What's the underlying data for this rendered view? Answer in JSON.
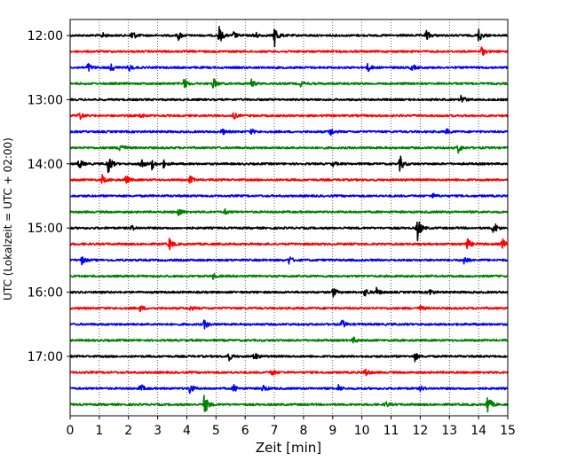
{
  "chart_data": {
    "type": "line",
    "title": "",
    "xlabel": "Zeit  [min]",
    "ylabel": "UTC (Lokalzeit = UTC + 02:00)",
    "xlim": [
      0,
      15
    ],
    "x_ticks": [
      0,
      1,
      2,
      3,
      4,
      5,
      6,
      7,
      8,
      9,
      10,
      11,
      12,
      13,
      14,
      15
    ],
    "y_ticks": [
      "12:00",
      "13:00",
      "14:00",
      "15:00",
      "16:00",
      "17:00"
    ],
    "grid": "vertical dotted",
    "colors": [
      "#000000",
      "#ff0000",
      "#0000ff",
      "#008000"
    ],
    "trace_interval_min": 15,
    "series": [
      {
        "start": "12:00",
        "color": "#000000",
        "events": [
          [
            1.1,
            3
          ],
          [
            2.1,
            8
          ],
          [
            3.7,
            6
          ],
          [
            5.1,
            11
          ],
          [
            5.6,
            4
          ],
          [
            6.3,
            6
          ],
          [
            7.0,
            14
          ],
          [
            12.2,
            7
          ],
          [
            14.0,
            9
          ]
        ]
      },
      {
        "start": "12:15",
        "color": "#ff0000",
        "events": [
          [
            14.1,
            6
          ]
        ]
      },
      {
        "start": "12:30",
        "color": "#0000ff",
        "events": [
          [
            0.6,
            6
          ],
          [
            1.4,
            5
          ],
          [
            2.0,
            5
          ],
          [
            10.2,
            5
          ],
          [
            11.7,
            4
          ]
        ]
      },
      {
        "start": "12:45",
        "color": "#008000",
        "events": [
          [
            3.9,
            7
          ],
          [
            4.9,
            7
          ],
          [
            6.2,
            5
          ],
          [
            7.9,
            3
          ]
        ]
      },
      {
        "start": "13:00",
        "color": "#000000",
        "events": [
          [
            13.4,
            7
          ]
        ]
      },
      {
        "start": "13:15",
        "color": "#ff0000",
        "events": [
          [
            0.3,
            6
          ],
          [
            2.4,
            3
          ],
          [
            5.6,
            4
          ]
        ]
      },
      {
        "start": "13:30",
        "color": "#0000ff",
        "events": [
          [
            5.2,
            4
          ],
          [
            6.2,
            3
          ],
          [
            8.9,
            6
          ],
          [
            12.9,
            3
          ]
        ]
      },
      {
        "start": "13:45",
        "color": "#008000",
        "events": [
          [
            1.7,
            8
          ],
          [
            13.3,
            6
          ]
        ]
      },
      {
        "start": "14:00",
        "color": "#000000",
        "events": [
          [
            0.3,
            7
          ],
          [
            1.3,
            14
          ],
          [
            2.4,
            9
          ],
          [
            2.8,
            6
          ],
          [
            3.2,
            4
          ],
          [
            9.0,
            3
          ],
          [
            11.3,
            10
          ]
        ]
      },
      {
        "start": "14:15",
        "color": "#ff0000",
        "events": [
          [
            1.1,
            5
          ],
          [
            1.9,
            6
          ],
          [
            4.1,
            5
          ]
        ]
      },
      {
        "start": "14:30",
        "color": "#0000ff",
        "events": [
          [
            12.4,
            3
          ]
        ]
      },
      {
        "start": "14:45",
        "color": "#008000",
        "events": [
          [
            3.7,
            6
          ],
          [
            5.3,
            3
          ]
        ]
      },
      {
        "start": "15:00",
        "color": "#000000",
        "events": [
          [
            2.1,
            3
          ],
          [
            11.9,
            16
          ],
          [
            14.5,
            10
          ]
        ]
      },
      {
        "start": "15:15",
        "color": "#ff0000",
        "events": [
          [
            3.4,
            7
          ],
          [
            13.6,
            8
          ],
          [
            14.8,
            7
          ]
        ]
      },
      {
        "start": "15:30",
        "color": "#0000ff",
        "events": [
          [
            0.4,
            5
          ],
          [
            7.5,
            5
          ],
          [
            13.5,
            6
          ]
        ]
      },
      {
        "start": "15:45",
        "color": "#008000",
        "events": [
          [
            4.9,
            3
          ]
        ]
      },
      {
        "start": "16:00",
        "color": "#000000",
        "events": [
          [
            9.0,
            6
          ],
          [
            10.1,
            6
          ],
          [
            10.5,
            5
          ],
          [
            12.3,
            5
          ]
        ]
      },
      {
        "start": "16:15",
        "color": "#ff0000",
        "events": [
          [
            2.4,
            4
          ],
          [
            4.1,
            3
          ],
          [
            12.0,
            3
          ]
        ]
      },
      {
        "start": "16:30",
        "color": "#0000ff",
        "events": [
          [
            4.6,
            6
          ],
          [
            9.3,
            6
          ]
        ]
      },
      {
        "start": "16:45",
        "color": "#008000",
        "events": [
          [
            9.7,
            4
          ]
        ]
      },
      {
        "start": "17:00",
        "color": "#000000",
        "events": [
          [
            5.4,
            7
          ],
          [
            6.3,
            6
          ],
          [
            11.8,
            6
          ]
        ]
      },
      {
        "start": "17:15",
        "color": "#ff0000",
        "events": [
          [
            6.9,
            5
          ],
          [
            10.1,
            6
          ]
        ]
      },
      {
        "start": "17:30",
        "color": "#0000ff",
        "events": [
          [
            2.4,
            6
          ],
          [
            4.1,
            7
          ],
          [
            5.6,
            5
          ],
          [
            6.6,
            5
          ],
          [
            9.2,
            4
          ],
          [
            12.0,
            3
          ]
        ]
      },
      {
        "start": "17:45",
        "color": "#008000",
        "events": [
          [
            4.6,
            14
          ],
          [
            14.3,
            14
          ],
          [
            10.8,
            4
          ]
        ]
      }
    ]
  }
}
